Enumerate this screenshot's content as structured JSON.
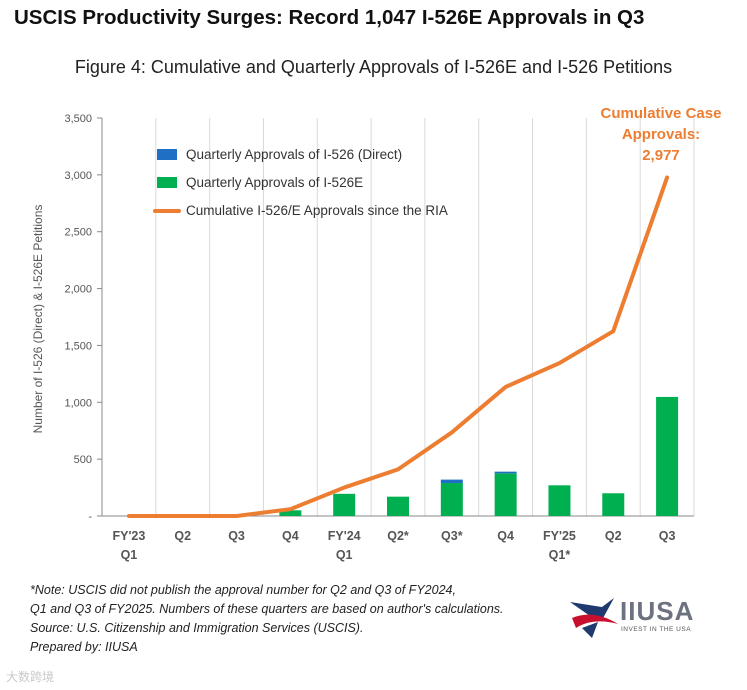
{
  "headline": "USCIS Productivity Surges: Record 1,047 I-526E Approvals in Q3",
  "figure_title": "Figure 4: Cumulative and Quarterly Approvals of I-526E and I-526 Petitions",
  "colors": {
    "direct": "#1f6fc5",
    "i526e": "#00b050",
    "cumulative": "#ed7d31",
    "grid": "#d9d9d9",
    "axis_text": "#555555"
  },
  "chart_data": {
    "type": "bar",
    "categories": [
      [
        "FY'23",
        "Q1"
      ],
      [
        "Q2"
      ],
      [
        "Q3"
      ],
      [
        "Q4"
      ],
      [
        "FY'24",
        "Q1"
      ],
      [
        "Q2*"
      ],
      [
        "Q3*"
      ],
      [
        "Q4"
      ],
      [
        "FY'25",
        "Q1*"
      ],
      [
        "Q2"
      ],
      [
        "Q3"
      ]
    ],
    "ylabel": "Number of I-526 (Direct) & I-526E Petitions",
    "ylim": [
      0,
      3500
    ],
    "yticks": [
      0,
      500,
      1000,
      1500,
      2000,
      2500,
      3000,
      3500
    ],
    "ytick_labels": [
      "-",
      "500",
      "1,000",
      "1,500",
      "2,000",
      "2,500",
      "3,000",
      "3,500"
    ],
    "grid": true,
    "legend_position": "top-left",
    "series": [
      {
        "name": "Quarterly Approvals of I-526 (Direct)",
        "kind": "bar-stacked",
        "values": [
          0,
          0,
          0,
          0,
          0,
          0,
          30,
          15,
          0,
          0,
          0
        ]
      },
      {
        "name": "Quarterly Approvals of I-526E",
        "kind": "bar-stacked",
        "values": [
          0,
          0,
          0,
          50,
          195,
          170,
          290,
          375,
          270,
          200,
          1047
        ]
      },
      {
        "name": "Cumulative I-526/E Approvals since the RIA",
        "kind": "line",
        "values": [
          0,
          0,
          0,
          60,
          250,
          410,
          735,
          1135,
          1345,
          1625,
          2977
        ]
      }
    ],
    "annotation": [
      "Cumulative Case",
      "Approvals:",
      "2,977"
    ]
  },
  "note_lines": [
    "*Note: USCIS did not publish the approval number for Q2 and Q3 of FY2024,",
    "Q1 and Q3 of FY2025. Numbers of these quarters are based on author's calculations.",
    "Source: U.S. Citizenship and Immigration Services (USCIS).",
    "Prepared by: IIUSA"
  ],
  "logo": {
    "name": "IIUSA",
    "tagline": "INVEST IN THE USA"
  },
  "watermark": "大数跨境"
}
